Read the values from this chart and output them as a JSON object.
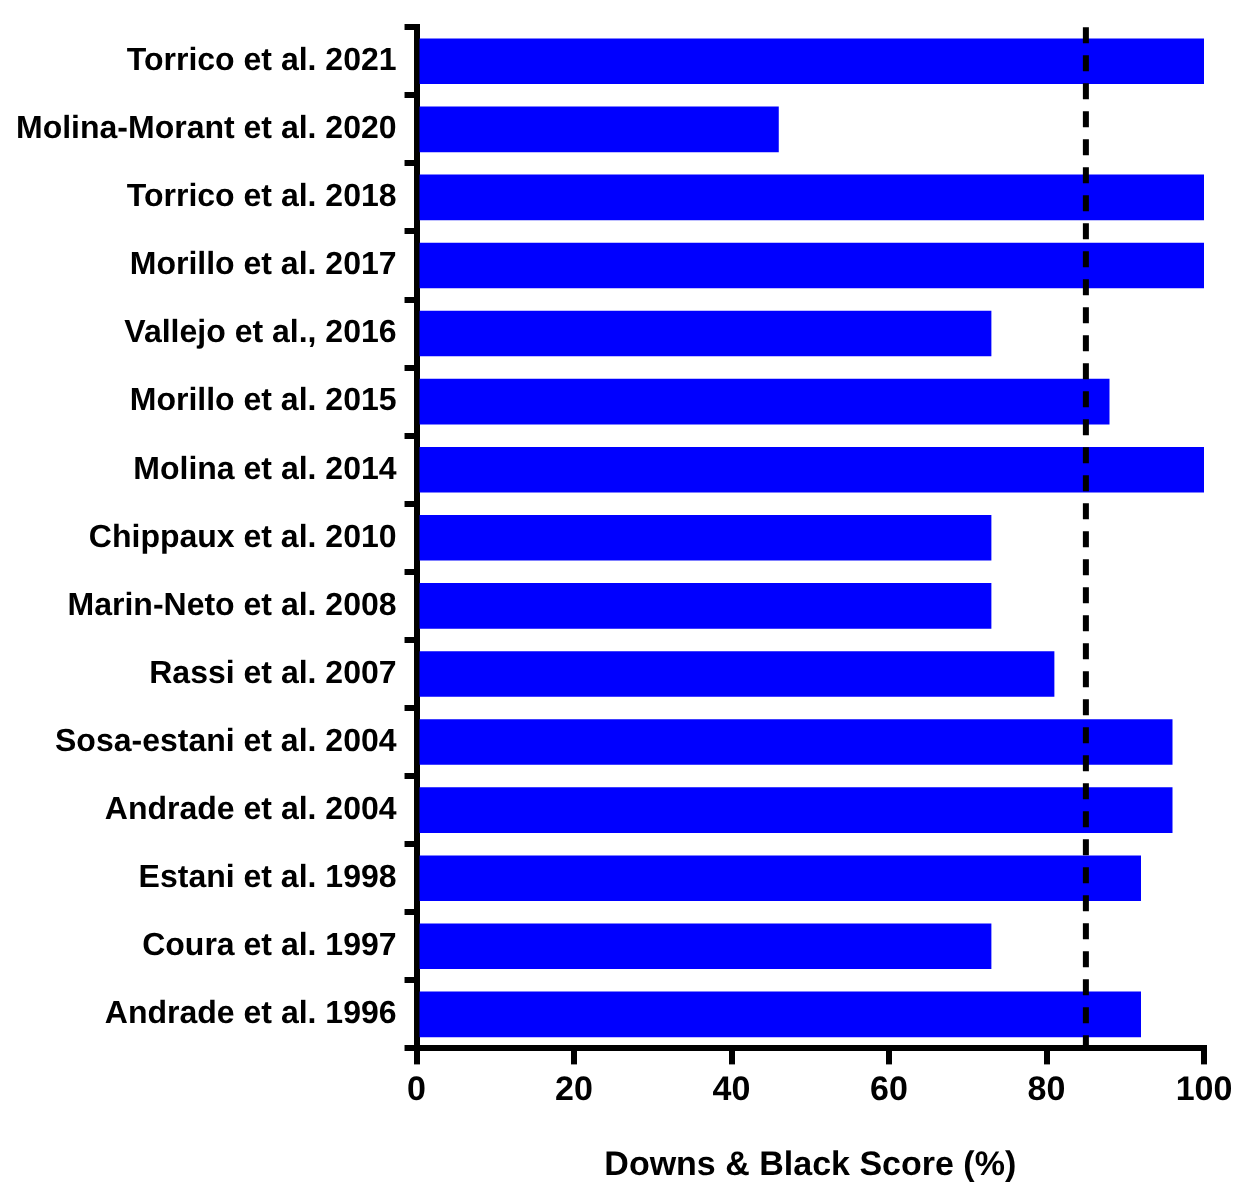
{
  "chart_data": {
    "type": "bar",
    "orientation": "horizontal",
    "xlabel": "Downs & Black Score (%)",
    "categories": [
      "Torrico et al. 2021",
      "Molina-Morant et al. 2020",
      "Torrico et al. 2018",
      "Morillo et al. 2017",
      "Vallejo et al., 2016",
      "Morillo et al. 2015",
      "Molina et al. 2014",
      "Chippaux et al. 2010",
      "Marin-Neto et al. 2008",
      "Rassi et al. 2007",
      "Sosa-estani et al. 2004",
      "Andrade et al. 2004",
      "Estani et al. 1998",
      "Coura et al. 1997",
      "Andrade et al. 1996"
    ],
    "values": [
      100,
      46,
      100,
      100,
      73,
      88,
      100,
      73,
      73,
      81,
      96,
      96,
      92,
      73,
      92
    ],
    "color": "#0000ff",
    "xlim": [
      0,
      100
    ],
    "xticks": [
      0,
      20,
      40,
      60,
      80,
      100
    ],
    "grid": false,
    "legend": false,
    "ref_lines": [
      {
        "axis": "x",
        "value": 85,
        "color": "#000000",
        "line_style": "dashed"
      }
    ]
  }
}
